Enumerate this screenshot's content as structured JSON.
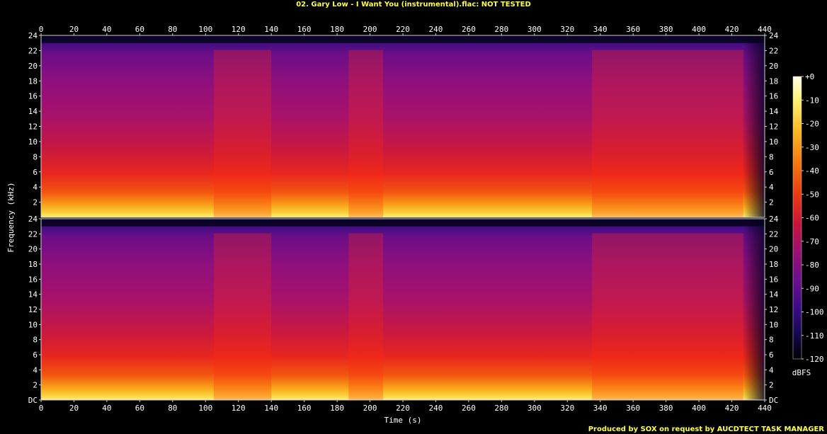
{
  "title": "02. Gary Low - I Want You (instrumental).flac: NOT TESTED",
  "footer": "Produced by SOX on request by AUCDTECT TASK MANAGER",
  "colors": {
    "background": "#000000",
    "text": "#ffffff",
    "title": "#ffff40"
  },
  "chart_data": {
    "type": "heatmap",
    "title": "02. Gary Low - I Want You (instrumental).flac: NOT TESTED",
    "xlabel": "Time (s)",
    "ylabel": "Frequency (kHz)",
    "xlim": [
      0,
      440
    ],
    "ylim": [
      0,
      24
    ],
    "x_ticks": [
      "0",
      "20",
      "40",
      "60",
      "80",
      "100",
      "120",
      "140",
      "160",
      "180",
      "200",
      "220",
      "240",
      "260",
      "280",
      "300",
      "320",
      "340",
      "360",
      "380",
      "400",
      "420",
      "440"
    ],
    "y_ticks_top": [
      "2",
      "4",
      "6",
      "8",
      "10",
      "12",
      "14",
      "16",
      "18",
      "20",
      "22",
      "24"
    ],
    "y_ticks_bottom": [
      "DC",
      "2",
      "4",
      "6",
      "8",
      "10",
      "12",
      "14",
      "16",
      "18",
      "20",
      "22",
      "24"
    ],
    "channels": 2,
    "colorbar": {
      "label": "dBFS",
      "ticks": [
        "+0",
        "-10",
        "-20",
        "-30",
        "-40",
        "-50",
        "-60",
        "-70",
        "-80",
        "-90",
        "-100",
        "-110",
        "-120"
      ],
      "range": [
        -120,
        0
      ]
    },
    "sections": [
      {
        "start": 0,
        "end": 105,
        "level": "medium"
      },
      {
        "start": 105,
        "end": 140,
        "level": "loud"
      },
      {
        "start": 140,
        "end": 187,
        "level": "medium"
      },
      {
        "start": 187,
        "end": 208,
        "level": "loud"
      },
      {
        "start": 208,
        "end": 335,
        "level": "medium"
      },
      {
        "start": 335,
        "end": 427,
        "level": "loud"
      },
      {
        "start": 427,
        "end": 440,
        "level": "fade"
      }
    ]
  }
}
